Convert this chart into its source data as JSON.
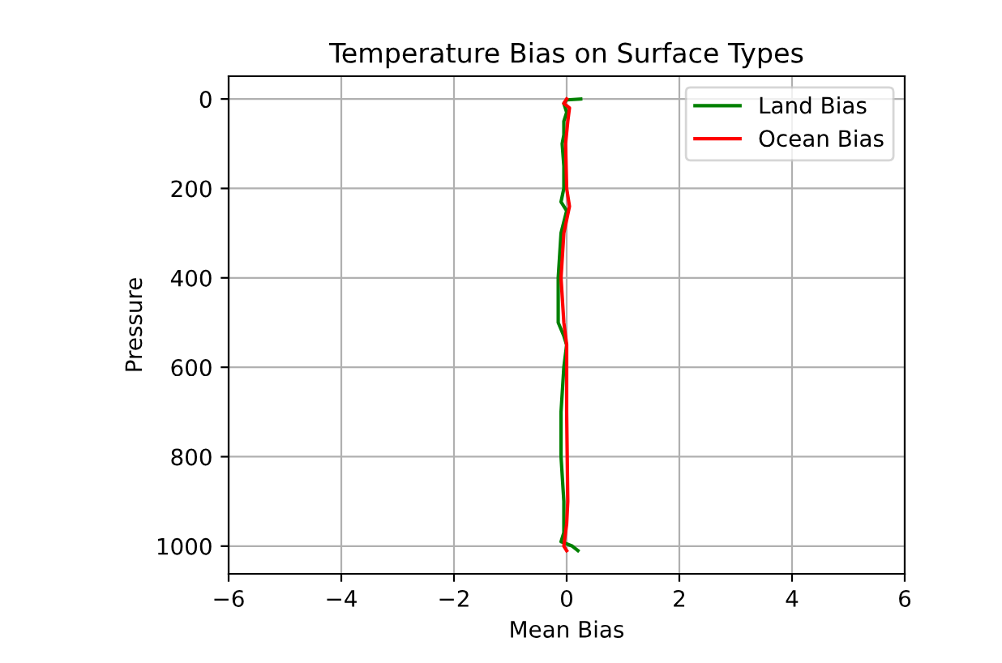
{
  "chart_data": {
    "type": "line",
    "title": "Temperature Bias on Surface Types",
    "xlabel": "Mean Bias",
    "ylabel": "Pressure",
    "series": [
      {
        "name": "Land Bias",
        "color": "#008000",
        "x": [
          0.25,
          0.0,
          -0.05,
          0.0,
          -0.05,
          -0.05,
          -0.08,
          -0.05,
          -0.05,
          -0.1,
          0.0,
          -0.1,
          -0.15,
          -0.15,
          -0.05,
          0.0,
          -0.05,
          -0.1,
          -0.1,
          -0.05,
          -0.05,
          -0.1,
          0.1,
          0.2
        ],
        "values": [
          0,
          2,
          10,
          30,
          50,
          80,
          100,
          150,
          200,
          230,
          250,
          300,
          400,
          500,
          530,
          550,
          600,
          700,
          800,
          900,
          970,
          990,
          1000,
          1010
        ]
      },
      {
        "name": "Ocean Bias",
        "color": "#ff0000",
        "x": [
          0.0,
          -0.05,
          0.05,
          0.02,
          -0.02,
          0.0,
          0.05,
          -0.05,
          -0.1,
          -0.05,
          0.0,
          0.0,
          0.02,
          0.0,
          -0.05,
          0.0
        ],
        "values": [
          0,
          10,
          20,
          50,
          100,
          200,
          240,
          300,
          400,
          500,
          550,
          700,
          900,
          950,
          1000,
          1010
        ]
      }
    ],
    "xlim": [
      -6,
      6
    ],
    "xticks": [
      -6,
      -4,
      -2,
      0,
      2,
      4,
      6
    ],
    "ylim": [
      1062,
      -51
    ],
    "yticks": [
      0,
      200,
      400,
      600,
      800,
      1000
    ],
    "grid": true,
    "legend": "top right"
  }
}
